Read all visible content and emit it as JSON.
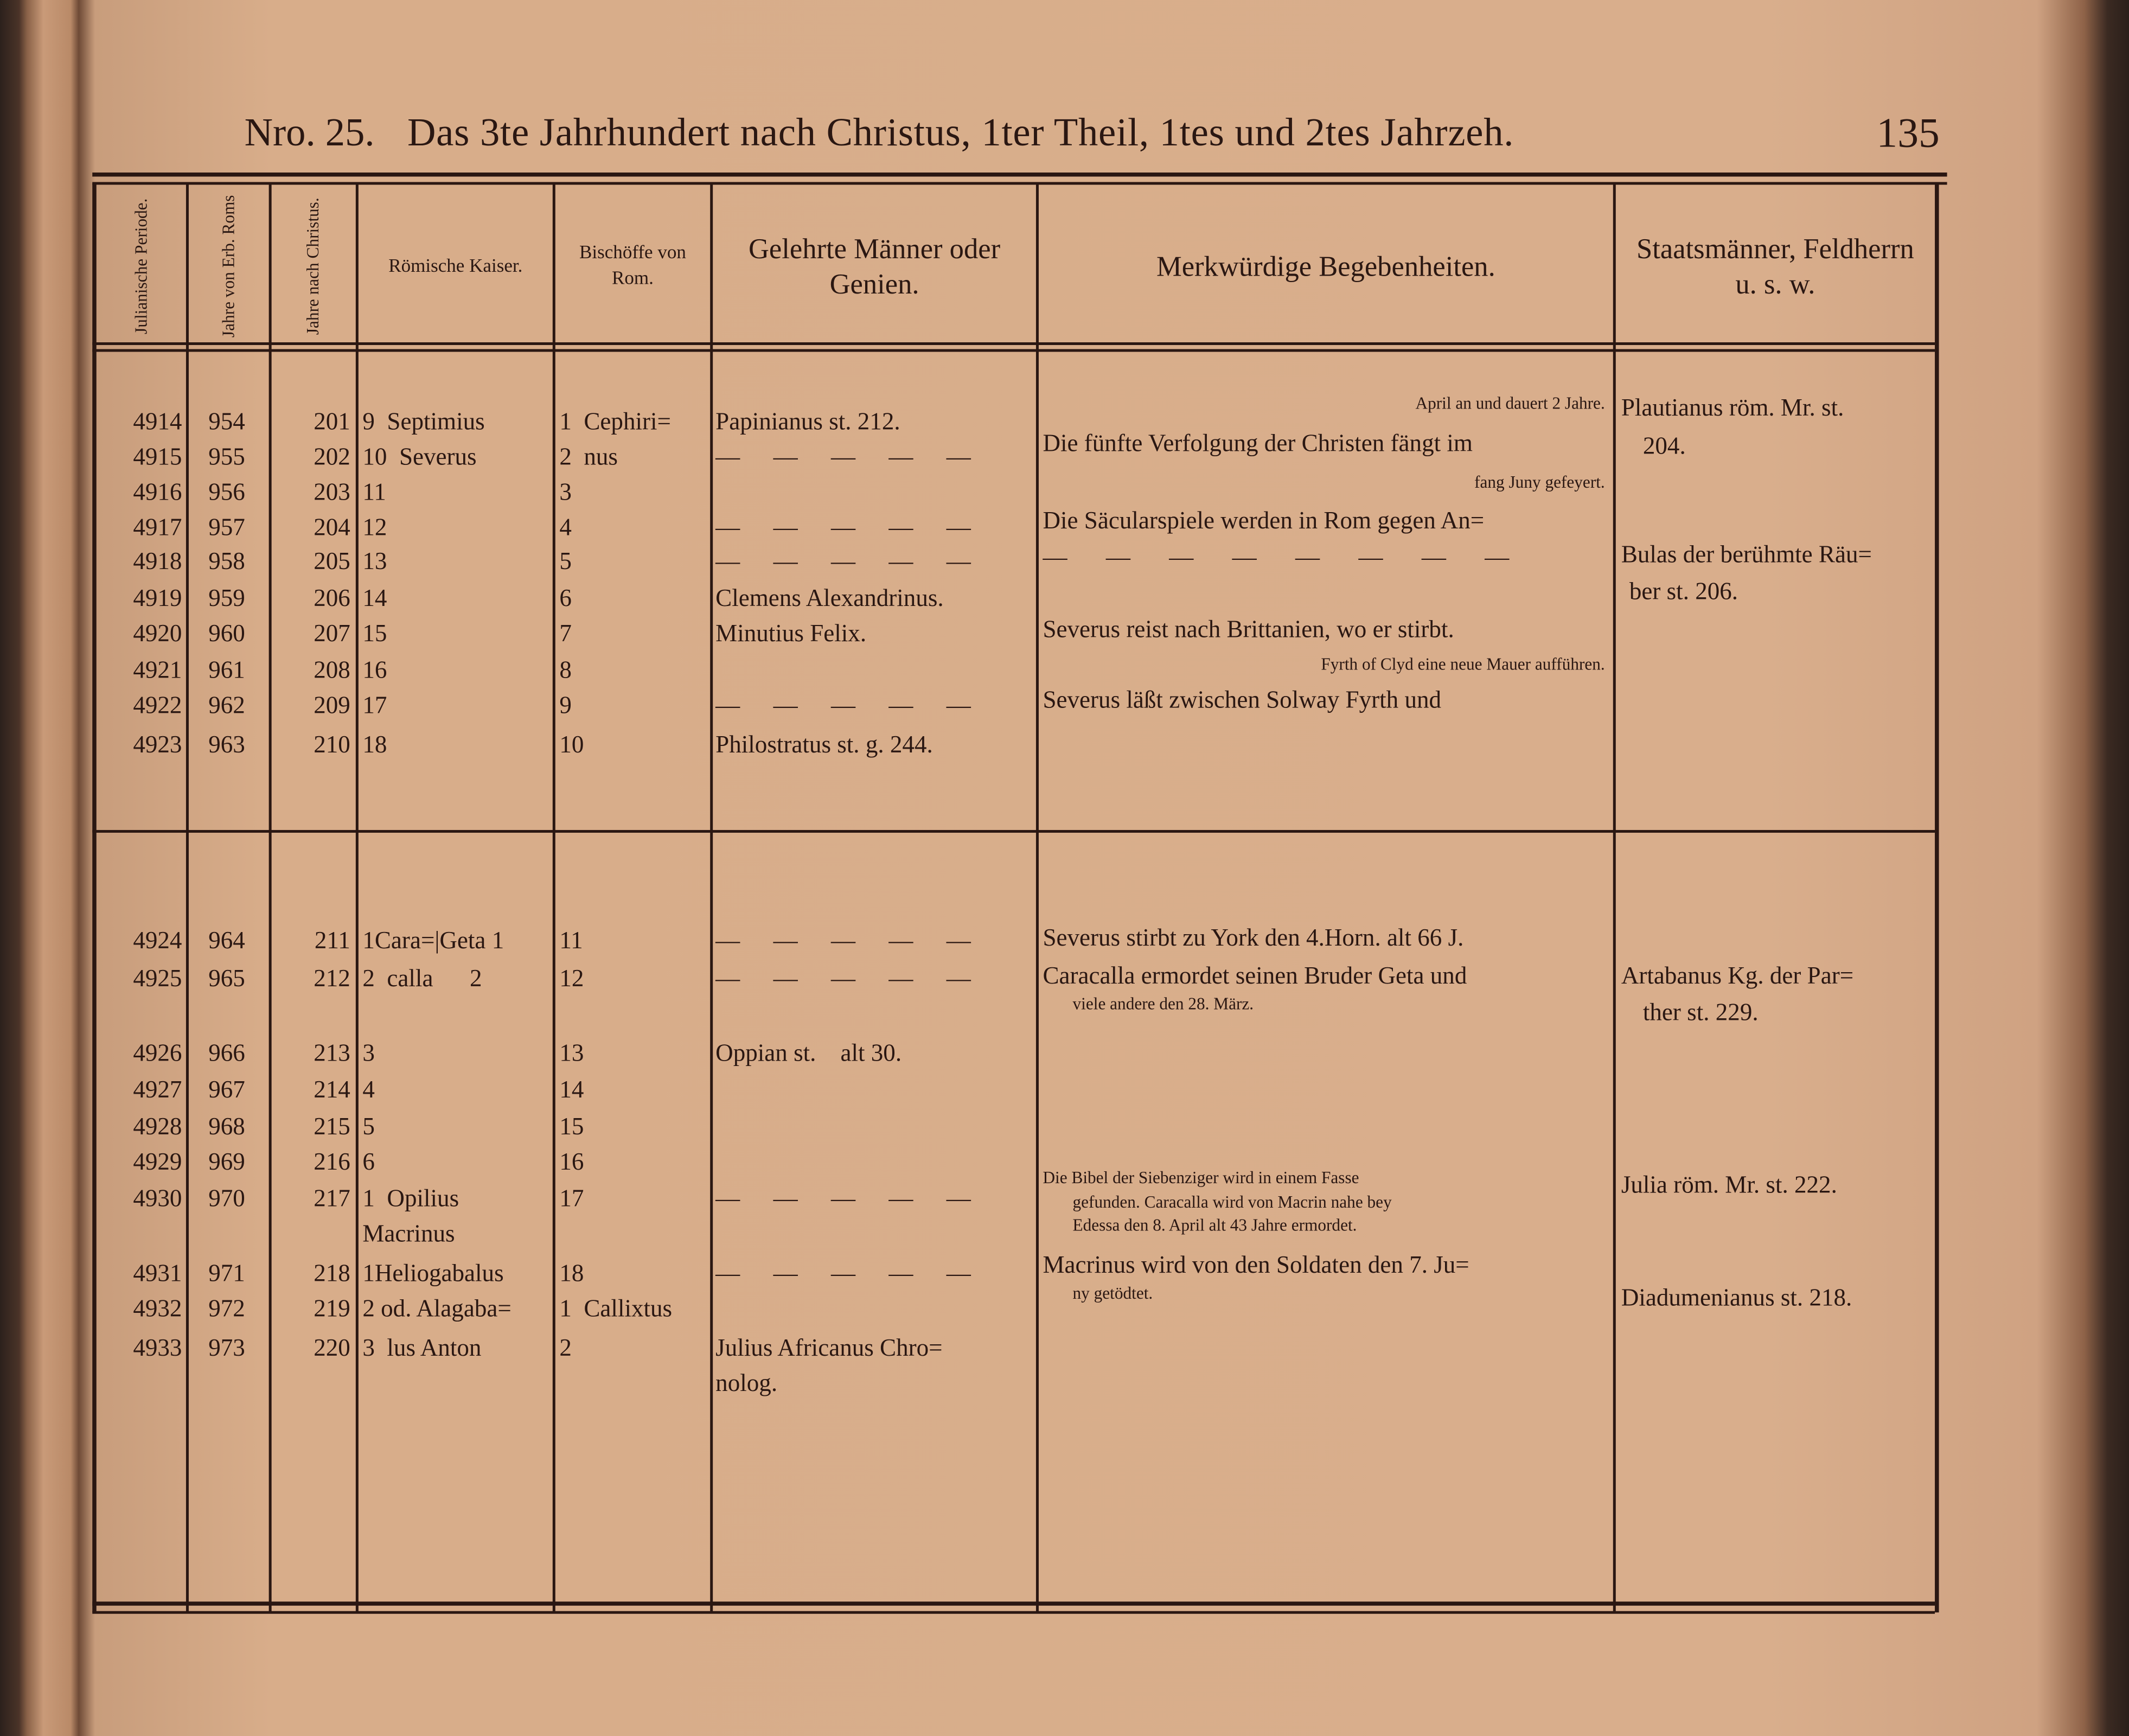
{
  "header": {
    "number_label": "Nro. 25.",
    "title": "Das 3te Jahrhundert nach Christus, 1ter Theil, 1tes und 2tes Jahrzeh.",
    "page_number": "135"
  },
  "columns": [
    {
      "label": "Julianische Periode."
    },
    {
      "label": "Jahre von Erb. Roms"
    },
    {
      "label": "Jahre nach Christus."
    },
    {
      "label": "Römische Kaiser."
    },
    {
      "label": "Bischöffe von Rom."
    },
    {
      "label": "Gelehrte Männer oder Genien."
    },
    {
      "label": "Merkwürdige Begebenheiten."
    },
    {
      "label": "Staatsmänner, Feldherrn u. s. w."
    }
  ],
  "sections": [
    {
      "rows": [
        {
          "jp": "4914",
          "urb": "954",
          "ad": "201",
          "kaiser": "9  Septimius",
          "bischof": "1  Cephiri=",
          "gelehrte": "Papinianus st. 212."
        },
        {
          "jp": "4915",
          "urb": "955",
          "ad": "202",
          "kaiser": "10  Severus",
          "bischof": "2  nus",
          "gelehrte": "— — — — —"
        },
        {
          "jp": "4916",
          "urb": "956",
          "ad": "203",
          "kaiser": "11",
          "bischof": "3",
          "gelehrte": ""
        },
        {
          "jp": "4917",
          "urb": "957",
          "ad": "204",
          "kaiser": "12",
          "bischof": "4",
          "gelehrte": "— — — — —"
        },
        {
          "jp": "4918",
          "urb": "958",
          "ad": "205",
          "kaiser": "13",
          "bischof": "5",
          "gelehrte": "— — — — —"
        },
        {
          "jp": "4919",
          "urb": "959",
          "ad": "206",
          "kaiser": "14",
          "bischof": "6",
          "gelehrte": "Clemens Alexandrinus."
        },
        {
          "jp": "4920",
          "urb": "960",
          "ad": "207",
          "kaiser": "15",
          "bischof": "7",
          "gelehrte": "Minutius Felix."
        },
        {
          "jp": "4921",
          "urb": "961",
          "ad": "208",
          "kaiser": "16",
          "bischof": "8",
          "gelehrte": ""
        },
        {
          "jp": "4922",
          "urb": "962",
          "ad": "209",
          "kaiser": "17",
          "bischof": "9",
          "gelehrte": "— — — — —"
        },
        {
          "jp": "4923",
          "urb": "963",
          "ad": "210",
          "kaiser": "18",
          "bischof": "10",
          "gelehrte": "Philostratus st. g. 244."
        }
      ],
      "events": [
        "April an und dauert 2 Jahre.",
        "Die fünfte Verfolgung der Christen fängt im",
        "fang Juny gefeyert.",
        "Die Säcularspiele werden in Rom gegen An=",
        "— — — — — — — —",
        "Severus reist nach Brittanien, wo er stirbt.",
        "Fyrth of Clyd eine neue Mauer aufführen.",
        "Severus läßt zwischen Solway Fyrth und"
      ],
      "statesmen": [
        "Plautianus röm. Mr. st.",
        "204.",
        "Bulas der berühmte Räu=",
        "ber st. 206."
      ]
    },
    {
      "rows": [
        {
          "jp": "4924",
          "urb": "964",
          "ad": "211",
          "kaiser": "1Cara=|Geta 1",
          "bischof": "11",
          "gelehrte": "— — — — —"
        },
        {
          "jp": "4925",
          "urb": "965",
          "ad": "212",
          "kaiser": "2  calla      2",
          "bischof": "12",
          "gelehrte": "— — — — —"
        },
        {
          "jp": "4926",
          "urb": "966",
          "ad": "213",
          "kaiser": "3",
          "bischof": "13",
          "gelehrte": "Oppian st.    alt 30."
        },
        {
          "jp": "4927",
          "urb": "967",
          "ad": "214",
          "kaiser": "4",
          "bischof": "14",
          "gelehrte": ""
        },
        {
          "jp": "4928",
          "urb": "968",
          "ad": "215",
          "kaiser": "5",
          "bischof": "15",
          "gelehrte": ""
        },
        {
          "jp": "4929",
          "urb": "969",
          "ad": "216",
          "kaiser": "6",
          "bischof": "16",
          "gelehrte": ""
        },
        {
          "jp": "4930",
          "urb": "970",
          "ad": "217",
          "kaiser": "1  Opilius",
          "bischof": "17",
          "gelehrte": "— — — — —"
        },
        {
          "jp": "",
          "urb": "",
          "ad": "",
          "kaiser": "Macrinus",
          "bischof": "",
          "gelehrte": ""
        },
        {
          "jp": "4931",
          "urb": "971",
          "ad": "218",
          "kaiser": "1Heliogabalus",
          "bischof": "18",
          "gelehrte": "— — — — —"
        },
        {
          "jp": "4932",
          "urb": "972",
          "ad": "219",
          "kaiser": "2 od. Alagaba=",
          "bischof": "1  Callixtus",
          "gelehrte": ""
        },
        {
          "jp": "4933",
          "urb": "973",
          "ad": "220",
          "kaiser": "3  lus Anton",
          "bischof": "2",
          "gelehrte": "Julius Africanus Chro="
        },
        {
          "jp": "",
          "urb": "",
          "ad": "",
          "kaiser": "",
          "bischof": "",
          "gelehrte": "nolog."
        }
      ],
      "events": [
        "Severus stirbt zu York den 4.Horn. alt 66 J.",
        "Caracalla ermordet seinen Bruder Geta und",
        "viele andere den 28. März.",
        "Die Bibel der Siebenziger wird in einem Fasse",
        "gefunden.  Caracalla wird von Macrin nahe bey",
        "Edessa den 8. April alt 43 Jahre ermordet.",
        "Macrinus wird von den Soldaten den 7. Ju=",
        "ny getödtet."
      ],
      "statesmen": [
        "Artabanus Kg. der Par=",
        "ther st. 229.",
        "Julia röm. Mr. st. 222.",
        "Diadumenianus st. 218."
      ]
    }
  ]
}
